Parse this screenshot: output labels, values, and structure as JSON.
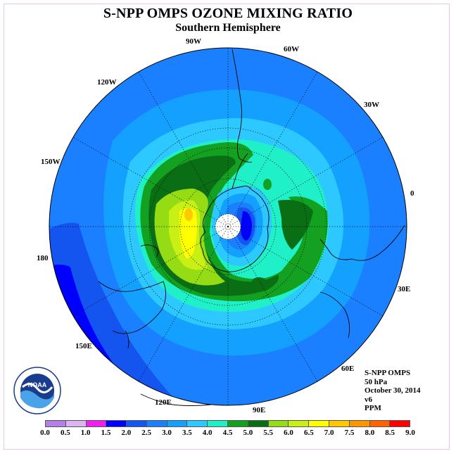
{
  "header": {
    "title": "S-NPP OMPS OZONE MIXING RATIO",
    "subtitle": "Southern Hemisphere"
  },
  "map": {
    "projection": "south-polar-stereographic",
    "longitude_labels": [
      "90W",
      "60W",
      "30W",
      "0",
      "30E",
      "60E",
      "90E",
      "120E",
      "150E",
      "180",
      "150W",
      "120W"
    ],
    "colors": {
      "ocean_background": "#1a80ff",
      "polar_night": "#ffffff",
      "coastline": "#000000",
      "grid": "#000000"
    }
  },
  "info": {
    "instrument": "S-NPP OMPS",
    "level": "50 hPa",
    "date": "October 30, 2014",
    "version": "v6",
    "units": "PPM"
  },
  "legend": {
    "ticks": [
      "0.0",
      "0.5",
      "1.0",
      "1.5",
      "2.0",
      "2.5",
      "3.0",
      "3.5",
      "4.0",
      "4.5",
      "5.0",
      "5.5",
      "6.0",
      "6.5",
      "7.0",
      "7.5",
      "8.0",
      "8.5",
      "9.0"
    ],
    "colors": [
      "#b57fe8",
      "#dcb4f0",
      "#f01ef0",
      "#0000ff",
      "#1455f0",
      "#1a80ff",
      "#14a0ff",
      "#2cc8ff",
      "#20f0c8",
      "#14a020",
      "#0a6e14",
      "#96dc14",
      "#c8f014",
      "#ffff00",
      "#ffc800",
      "#ff9600",
      "#ff6400",
      "#ff0000",
      "#8c5a3c"
    ]
  },
  "logo": {
    "text": "NOAA"
  }
}
